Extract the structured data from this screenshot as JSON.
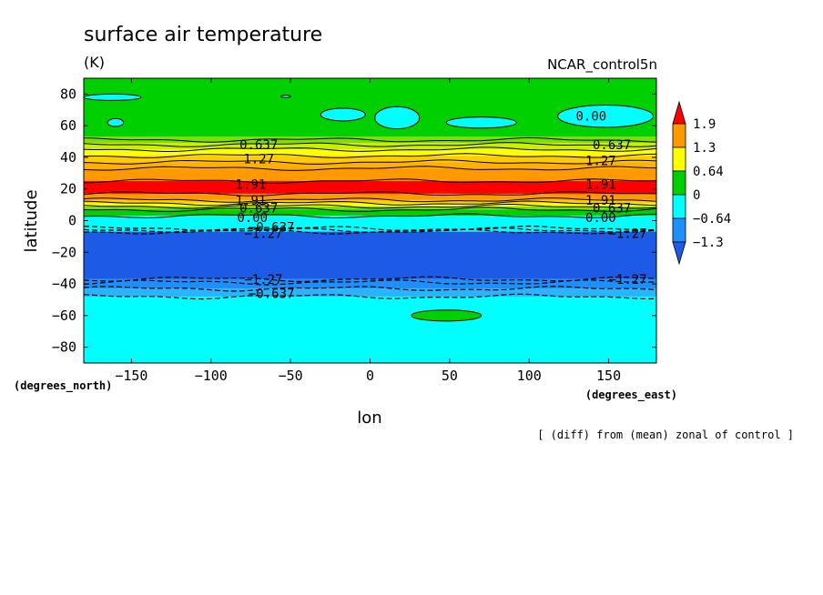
{
  "chart_data": {
    "type": "heatmap",
    "title": "surface air temperature",
    "units": "(K)",
    "dataset": "NCAR_control5n",
    "xlabel": "lon",
    "ylabel": "latitude",
    "x_units": "(degrees_east)",
    "y_units": "(degrees_north)",
    "note": "[ (diff) from (mean) zonal of control ]",
    "xlim": [
      -180,
      180
    ],
    "ylim": [
      -90,
      90
    ],
    "x_ticks": [
      {
        "v": -150,
        "label": "−150"
      },
      {
        "v": -100,
        "label": "−100"
      },
      {
        "v": -50,
        "label": "−50"
      },
      {
        "v": 0,
        "label": "0"
      },
      {
        "v": 50,
        "label": "50"
      },
      {
        "v": 100,
        "label": "100"
      },
      {
        "v": 150,
        "label": "150"
      }
    ],
    "y_ticks": [
      {
        "v": 80,
        "label": "80"
      },
      {
        "v": 60,
        "label": "60"
      },
      {
        "v": 40,
        "label": "40"
      },
      {
        "v": 20,
        "label": "20"
      },
      {
        "v": 0,
        "label": "0"
      },
      {
        "v": -20,
        "label": "−20"
      },
      {
        "v": -40,
        "label": "−40"
      },
      {
        "v": -60,
        "label": "−60"
      },
      {
        "v": -80,
        "label": "−80"
      }
    ],
    "colorbar": {
      "levels": [
        "1.9",
        "1.3",
        "0.64",
        "0",
        "−0.64",
        "−1.3"
      ],
      "colors": [
        "#ff0000",
        "#ff9900",
        "#ffff00",
        "#00d000",
        "#00ffff",
        "#1e8fff",
        "#1d5ae6"
      ]
    },
    "bands": [
      {
        "from": 90,
        "to": 53,
        "color": "#00d000"
      },
      {
        "from": 53,
        "to": 49,
        "color": "#7fe000"
      },
      {
        "from": 49,
        "to": 45,
        "color": "#ccee00"
      },
      {
        "from": 45,
        "to": 41,
        "color": "#ffff00"
      },
      {
        "from": 41,
        "to": 37,
        "color": "#ffcc00"
      },
      {
        "from": 37,
        "to": 33,
        "color": "#ffb000"
      },
      {
        "from": 33,
        "to": 25,
        "color": "#ff9900"
      },
      {
        "from": 25,
        "to": 17,
        "color": "#ff0000"
      },
      {
        "from": 17,
        "to": 13,
        "color": "#ff9900"
      },
      {
        "from": 13,
        "to": 11,
        "color": "#ffcc00"
      },
      {
        "from": 11,
        "to": 9,
        "color": "#ffff00"
      },
      {
        "from": 9,
        "to": 7,
        "color": "#7fe000"
      },
      {
        "from": 7,
        "to": 3,
        "color": "#00d000"
      },
      {
        "from": 3,
        "to": -7,
        "color": "#00ffff"
      },
      {
        "from": -7,
        "to": -37,
        "color": "#1d5ae6"
      },
      {
        "from": -37,
        "to": -43,
        "color": "#1e8fff"
      },
      {
        "from": -43,
        "to": -48,
        "color": "#28b4ff"
      },
      {
        "from": -48,
        "to": -90,
        "color": "#00ffff"
      }
    ],
    "solid_contours": [
      51,
      48,
      45,
      41,
      37,
      33,
      25,
      17,
      13,
      11,
      9,
      7,
      3
    ],
    "dashed_contours": [
      -5,
      -6,
      -7,
      -37,
      -39,
      -43,
      -48
    ],
    "patches": [
      {
        "lon": -162,
        "lat": 78,
        "rx": 18,
        "ry": 2,
        "color": "#00ffff"
      },
      {
        "lon": -160,
        "lat": 62,
        "rx": 5,
        "ry": 2.5,
        "color": "#00ffff"
      },
      {
        "lon": -53,
        "lat": 78.5,
        "rx": 3,
        "ry": 0.8,
        "color": "#00ffff"
      },
      {
        "lon": -17,
        "lat": 67,
        "rx": 14,
        "ry": 4,
        "color": "#00ffff"
      },
      {
        "lon": 17,
        "lat": 65,
        "rx": 14,
        "ry": 7,
        "color": "#00ffff"
      },
      {
        "lon": 70,
        "lat": 62,
        "rx": 22,
        "ry": 3.5,
        "color": "#00ffff"
      },
      {
        "lon": 148,
        "lat": 66,
        "rx": 30,
        "ry": 7,
        "color": "#00ffff"
      },
      {
        "lon": 48,
        "lat": -60,
        "rx": 22,
        "ry": 3.5,
        "color": "#00d000"
      }
    ],
    "contour_labels": [
      {
        "lon": -70,
        "lat": 48,
        "text": "0.637"
      },
      {
        "lon": 152,
        "lat": 48,
        "text": "0.637"
      },
      {
        "lon": -70,
        "lat": 39,
        "text": "1.27"
      },
      {
        "lon": 145,
        "lat": 38,
        "text": "1.27"
      },
      {
        "lon": -75,
        "lat": 23,
        "text": "1.91"
      },
      {
        "lon": 145,
        "lat": 23,
        "text": "1.91"
      },
      {
        "lon": -75,
        "lat": 13,
        "text": "1.91"
      },
      {
        "lon": 145,
        "lat": 13,
        "text": "1.91"
      },
      {
        "lon": -70,
        "lat": 8,
        "text": "0.637"
      },
      {
        "lon": 152,
        "lat": 8,
        "text": "0.637"
      },
      {
        "lon": -74,
        "lat": 2,
        "text": "0.00"
      },
      {
        "lon": 145,
        "lat": 2,
        "text": "0.00"
      },
      {
        "lon": -62,
        "lat": -4,
        "text": "−0.637"
      },
      {
        "lon": -67,
        "lat": -8,
        "text": "−1.27"
      },
      {
        "lon": 162,
        "lat": -8,
        "text": "−1.27"
      },
      {
        "lon": -67,
        "lat": -37,
        "text": "−1.27"
      },
      {
        "lon": 162,
        "lat": -37,
        "text": "−1.27"
      },
      {
        "lon": -62,
        "lat": -46,
        "text": "−0.637"
      },
      {
        "lon": 139,
        "lat": 66,
        "text": "0.00"
      }
    ]
  }
}
